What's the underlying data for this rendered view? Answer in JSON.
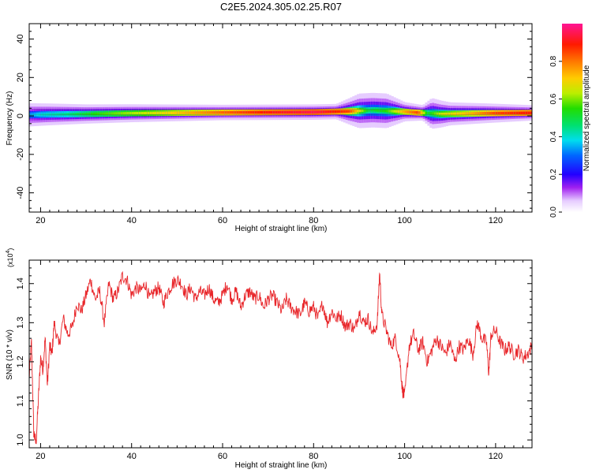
{
  "figure": {
    "title": "C2E5.2024.305.02.25.R07"
  },
  "chart_data": [
    {
      "type": "heatmap",
      "xlabel": "Height of straight line (km)",
      "ylabel": "Frequency (Hz)",
      "xlim": [
        17.5,
        128
      ],
      "ylim": [
        -50,
        48
      ],
      "xticks": [
        20,
        40,
        60,
        80,
        100,
        120
      ],
      "yticks": [
        -40,
        -20,
        0,
        20,
        40
      ],
      "colorbar": {
        "label": "Normalized spectral amplitude",
        "range": [
          0,
          1
        ],
        "ticks": [
          "0.0",
          "0.2",
          "0.4",
          "0.6",
          "0.8"
        ]
      },
      "band": {
        "center_hz": [
          [
            18,
            0.6
          ],
          [
            22,
            0.8
          ],
          [
            30,
            1.0
          ],
          [
            40,
            1.4
          ],
          [
            60,
            1.8
          ],
          [
            80,
            2.0
          ],
          [
            88,
            2.4
          ],
          [
            93,
            3.0
          ],
          [
            100,
            2.2
          ],
          [
            104,
            1.6
          ],
          [
            108,
            1.0
          ],
          [
            118,
            1.4
          ],
          [
            128,
            1.6
          ]
        ],
        "amplitude": [
          [
            18,
            0.35
          ],
          [
            20,
            0.4
          ],
          [
            26,
            0.45
          ],
          [
            32,
            0.55
          ],
          [
            40,
            0.62
          ],
          [
            50,
            0.72
          ],
          [
            60,
            0.82
          ],
          [
            70,
            0.9
          ],
          [
            80,
            0.95
          ],
          [
            88,
            0.85
          ],
          [
            92,
            0.5
          ],
          [
            96,
            0.55
          ],
          [
            100,
            0.75
          ],
          [
            103,
            0.85
          ],
          [
            105,
            0.5
          ],
          [
            108,
            0.65
          ],
          [
            115,
            0.75
          ],
          [
            120,
            0.85
          ],
          [
            128,
            0.9
          ]
        ],
        "halo_width_hz": [
          [
            18,
            6
          ],
          [
            30,
            5
          ],
          [
            60,
            4
          ],
          [
            85,
            4
          ],
          [
            90,
            9
          ],
          [
            96,
            9
          ],
          [
            100,
            5
          ],
          [
            104,
            4
          ],
          [
            106,
            8
          ],
          [
            110,
            6
          ],
          [
            128,
            4
          ]
        ]
      },
      "grid": false
    },
    {
      "type": "line",
      "xlabel": "Height of straight line (km)",
      "ylabel": "SNR (10 * v/v)",
      "multiplier": "(x10",
      "multiplier_exp": "4",
      "multiplier_close": ")",
      "xlim": [
        17.5,
        128
      ],
      "ylim": [
        0.98,
        1.46
      ],
      "xticks": [
        20,
        40,
        60,
        80,
        100,
        120
      ],
      "yticks": [
        "1.0",
        "1.1",
        "1.2",
        "1.3",
        "1.4"
      ],
      "series": [
        {
          "color": "#e8262a",
          "x": [
            17.5,
            18.0,
            18.5,
            19.0,
            19.5,
            20.0,
            20.5,
            21.0,
            21.5,
            22.0,
            22.5,
            23.0,
            24.0,
            25.0,
            26.0,
            27.0,
            28.0,
            29.0,
            30.0,
            31.0,
            32.0,
            33.0,
            34.0,
            35.0,
            36.0,
            37.0,
            38.0,
            39.0,
            40.0,
            41.0,
            42.0,
            43.0,
            44.0,
            45.0,
            46.0,
            47.0,
            48.0,
            49.0,
            50.0,
            51.0,
            52.0,
            53.0,
            54.0,
            55.0,
            56.0,
            57.0,
            58.0,
            59.0,
            60.0,
            61.0,
            62.0,
            63.0,
            64.0,
            65.0,
            66.0,
            67.0,
            68.0,
            69.0,
            70.0,
            71.0,
            72.0,
            73.0,
            74.0,
            75.0,
            76.0,
            77.0,
            78.0,
            79.0,
            80.0,
            81.0,
            82.0,
            83.0,
            84.0,
            85.0,
            86.0,
            87.0,
            88.0,
            89.0,
            90.0,
            91.0,
            92.0,
            93.0,
            94.0,
            94.5,
            95.0,
            96.0,
            97.0,
            98.0,
            99.0,
            99.5,
            100.0,
            101.0,
            102.0,
            103.0,
            104.0,
            105.0,
            106.0,
            107.0,
            108.0,
            109.0,
            110.0,
            111.0,
            112.0,
            113.0,
            114.0,
            115.0,
            116.0,
            117.0,
            118.0,
            118.5,
            119.0,
            120.0,
            121.0,
            122.0,
            123.0,
            124.0,
            125.0,
            126.0,
            127.0,
            128.0
          ],
          "y": [
            1.16,
            1.25,
            1.02,
            0.99,
            1.1,
            1.21,
            1.18,
            1.26,
            1.14,
            1.24,
            1.22,
            1.3,
            1.24,
            1.31,
            1.27,
            1.29,
            1.35,
            1.33,
            1.37,
            1.41,
            1.36,
            1.38,
            1.3,
            1.4,
            1.36,
            1.38,
            1.42,
            1.41,
            1.37,
            1.39,
            1.38,
            1.4,
            1.36,
            1.38,
            1.39,
            1.35,
            1.38,
            1.4,
            1.41,
            1.4,
            1.37,
            1.39,
            1.36,
            1.38,
            1.37,
            1.39,
            1.36,
            1.35,
            1.37,
            1.4,
            1.36,
            1.38,
            1.34,
            1.37,
            1.38,
            1.36,
            1.37,
            1.34,
            1.36,
            1.37,
            1.35,
            1.33,
            1.36,
            1.34,
            1.33,
            1.32,
            1.35,
            1.33,
            1.34,
            1.31,
            1.35,
            1.3,
            1.33,
            1.31,
            1.32,
            1.29,
            1.3,
            1.28,
            1.33,
            1.3,
            1.31,
            1.27,
            1.3,
            1.43,
            1.32,
            1.28,
            1.24,
            1.26,
            1.2,
            1.13,
            1.11,
            1.24,
            1.27,
            1.23,
            1.25,
            1.2,
            1.23,
            1.26,
            1.24,
            1.22,
            1.25,
            1.2,
            1.24,
            1.23,
            1.26,
            1.22,
            1.3,
            1.26,
            1.25,
            1.17,
            1.27,
            1.28,
            1.25,
            1.23,
            1.24,
            1.22,
            1.23,
            1.21,
            1.22,
            1.24
          ]
        }
      ]
    }
  ]
}
